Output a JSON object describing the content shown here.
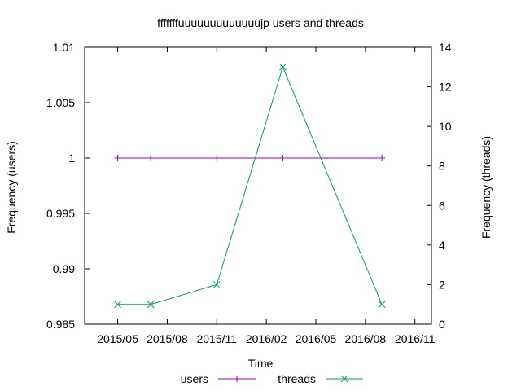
{
  "chart_data": {
    "type": "line",
    "title": "fffffffuuuuuuuuuuuuujp users and threads",
    "xlabel": "Time",
    "ylabel_left": "Frequency (users)",
    "ylabel_right": "Frequency (threads)",
    "x_ticks": [
      "2015/05",
      "2015/08",
      "2015/11",
      "2016/02",
      "2016/05",
      "2016/08",
      "2016/11"
    ],
    "y_left_ticks": [
      "0.985",
      "0.99",
      "0.995",
      "1",
      "1.005",
      "1.01"
    ],
    "y_right_ticks": [
      "0",
      "2",
      "4",
      "6",
      "8",
      "10",
      "12",
      "14"
    ],
    "y_left_range": [
      0.985,
      1.01
    ],
    "y_right_range": [
      0,
      14
    ],
    "x_range": [
      "2015/03",
      "2016/12"
    ],
    "grid": false,
    "legend_position": "bottom-center",
    "series": [
      {
        "name": "users",
        "axis": "left",
        "color": "#9400d3",
        "marker": "plus",
        "points": [
          {
            "x": "2015-05-01",
            "y": 1
          },
          {
            "x": "2015-07-01",
            "y": 1
          },
          {
            "x": "2015-11-01",
            "y": 1
          },
          {
            "x": "2016-03-01",
            "y": 1
          },
          {
            "x": "2016-09-01",
            "y": 1
          }
        ]
      },
      {
        "name": "threads",
        "axis": "right",
        "color": "#009e73",
        "marker": "cross",
        "points": [
          {
            "x": "2015-05-01",
            "y": 1
          },
          {
            "x": "2015-07-01",
            "y": 1
          },
          {
            "x": "2015-11-01",
            "y": 2
          },
          {
            "x": "2016-03-01",
            "y": 13
          },
          {
            "x": "2016-09-01",
            "y": 1
          }
        ]
      }
    ]
  }
}
